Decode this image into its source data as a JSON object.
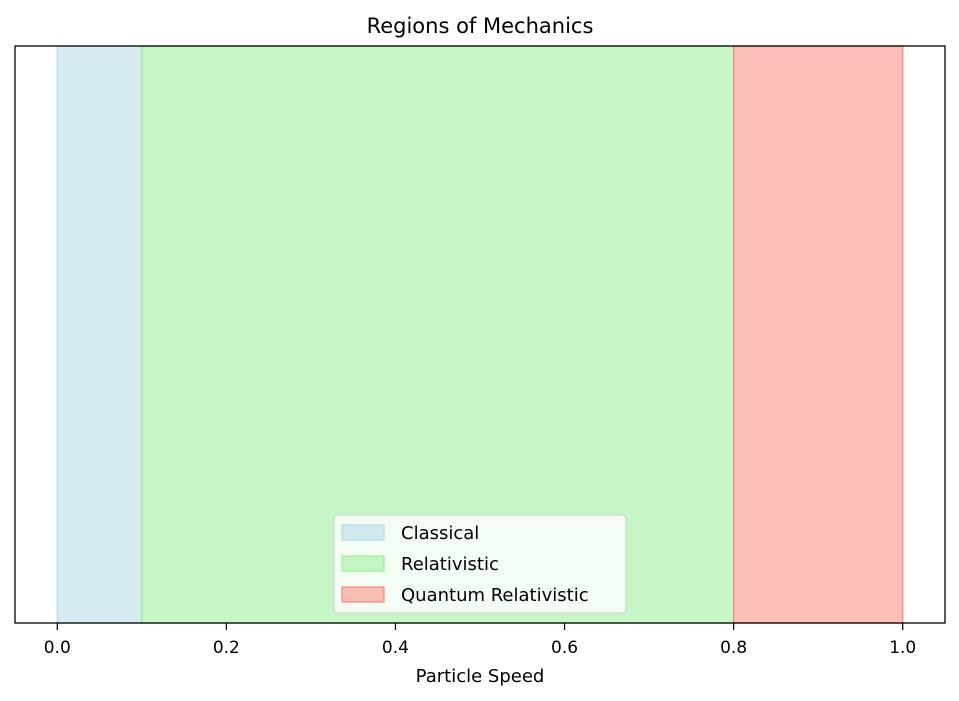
{
  "chart_data": {
    "type": "area",
    "title": "Regions of Mechanics",
    "xlabel": "Particle Speed",
    "ylabel": "",
    "xlim": [
      -0.05,
      1.05
    ],
    "xticks": [
      "0.0",
      "0.2",
      "0.4",
      "0.6",
      "0.8",
      "1.0"
    ],
    "y_axis_visible": false,
    "grid": false,
    "legend_position": "lower-center",
    "regions": [
      {
        "name": "Classical",
        "x_start": 0.0,
        "x_end": 0.1,
        "color": "#add8e6"
      },
      {
        "name": "Relativistic",
        "x_start": 0.1,
        "x_end": 0.8,
        "color": "#90ee90"
      },
      {
        "name": "Quantum Relativistic",
        "x_start": 0.8,
        "x_end": 1.0,
        "color": "#fa8072"
      }
    ]
  }
}
